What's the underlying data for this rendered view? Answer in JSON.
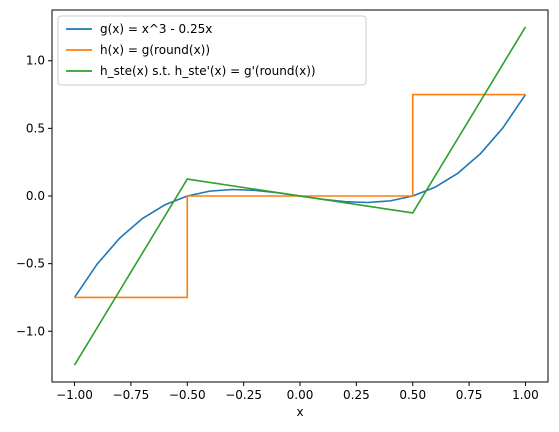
{
  "chart_data": {
    "type": "line",
    "title": "",
    "xlabel": "x",
    "ylabel": "",
    "xlim": [
      -1.1,
      1.1
    ],
    "ylim": [
      -1.375,
      1.375
    ],
    "grid": false,
    "legend_position": "top-left",
    "x_ticks": [
      -1.0,
      -0.75,
      -0.5,
      -0.25,
      0.0,
      0.25,
      0.5,
      0.75,
      1.0
    ],
    "x_tick_labels": [
      "−1.00",
      "−0.75",
      "−0.50",
      "−0.25",
      "0.00",
      "0.25",
      "0.50",
      "0.75",
      "1.00"
    ],
    "y_ticks": [
      -1.0,
      -0.5,
      0.0,
      0.5,
      1.0
    ],
    "y_tick_labels": [
      "−1.0",
      "−0.5",
      "0.0",
      "0.5",
      "1.0"
    ],
    "series": [
      {
        "name": "g(x) = x^3 - 0.25x",
        "color": "#1f77b4",
        "x": [
          -1.0,
          -0.9,
          -0.8,
          -0.7,
          -0.6,
          -0.5,
          -0.4,
          -0.3,
          -0.2,
          -0.1,
          0.0,
          0.1,
          0.2,
          0.3,
          0.4,
          0.5,
          0.6,
          0.7,
          0.8,
          0.9,
          1.0
        ],
        "y": [
          -0.75,
          -0.504,
          -0.312,
          -0.168,
          -0.066,
          0.0,
          0.036,
          0.048,
          0.042,
          0.024,
          0.0,
          -0.024,
          -0.042,
          -0.048,
          -0.036,
          0.0,
          0.066,
          0.168,
          0.312,
          0.504,
          0.75
        ]
      },
      {
        "name": "h(x) = g(round(x))",
        "color": "#ff7f0e",
        "x": [
          -1.0,
          -0.5,
          -0.5,
          0.5,
          0.5,
          1.0
        ],
        "y": [
          -0.75,
          -0.75,
          0.0,
          0.0,
          0.75,
          0.75
        ]
      },
      {
        "name": "h_ste(x) s.t. h_ste'(x) = g'(round(x))",
        "color": "#2ca02c",
        "x": [
          -1.0,
          -0.5,
          0.5,
          1.0
        ],
        "y": [
          -1.25,
          0.125,
          -0.125,
          1.25
        ]
      }
    ]
  }
}
